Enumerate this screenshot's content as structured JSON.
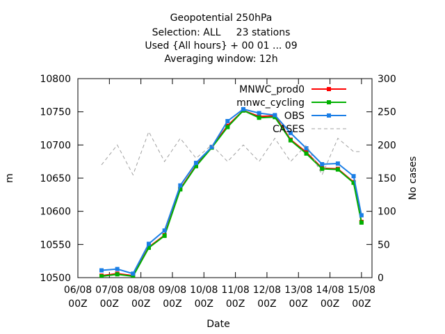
{
  "chart_data": {
    "type": "line",
    "title": [
      "Geopotential 250hPa",
      "Selection: ALL     23 stations",
      "Used {All hours} + 00 01 ... 09",
      "Averaging window: 12h"
    ],
    "xlabel": "Date",
    "ylabel": "m",
    "y2label": "No cases",
    "x": [
      18,
      30,
      42,
      54,
      66,
      78,
      90,
      102,
      114,
      126,
      138,
      150,
      162,
      174,
      186,
      198,
      210,
      216
    ],
    "xlim": [
      0,
      224
    ],
    "xticks": [
      {
        "value": 0,
        "label": "06/08\n00Z"
      },
      {
        "value": 24,
        "label": "07/08\n00Z"
      },
      {
        "value": 48,
        "label": "08/08\n00Z"
      },
      {
        "value": 72,
        "label": "09/08\n00Z"
      },
      {
        "value": 96,
        "label": "10/08\n00Z"
      },
      {
        "value": 120,
        "label": "11/08\n00Z"
      },
      {
        "value": 144,
        "label": "12/08\n00Z"
      },
      {
        "value": 168,
        "label": "13/08\n00Z"
      },
      {
        "value": 192,
        "label": "14/08\n00Z"
      },
      {
        "value": 216,
        "label": "15/08\n00Z"
      }
    ],
    "ylim": [
      10500,
      10800
    ],
    "yticks": [
      10500,
      10550,
      10600,
      10650,
      10700,
      10750,
      10800
    ],
    "y2lim": [
      0,
      300
    ],
    "y2ticks": [
      0,
      50,
      100,
      150,
      200,
      250,
      300
    ],
    "legend": "top-right",
    "grid": false,
    "series": [
      {
        "name": "MNWC_prod0",
        "color": "#ff0000",
        "values": [
          10503,
          10506,
          10503,
          10546,
          10564,
          10634,
          10669,
          10697,
          10729,
          10752,
          10743,
          10744,
          10708,
          10689,
          10665,
          10664,
          10644,
          10584
        ]
      },
      {
        "name": "mnwc_cycling",
        "color": "#00b000",
        "values": [
          10502,
          10505,
          10502,
          10545,
          10563,
          10633,
          10668,
          10696,
          10727,
          10752,
          10741,
          10742,
          10707,
          10687,
          10664,
          10663,
          10643,
          10583
        ]
      },
      {
        "name": "OBS",
        "color": "#1a7ee6",
        "values": [
          10511,
          10513,
          10506,
          10551,
          10571,
          10639,
          10673,
          10697,
          10736,
          10754,
          10748,
          10745,
          10718,
          10695,
          10671,
          10672,
          10653,
          10594
        ]
      },
      {
        "name": "CASES",
        "color": "#a0a0a0",
        "axis": "y2",
        "dashed": true,
        "values": [
          170,
          200,
          155,
          220,
          175,
          210,
          180,
          200,
          175,
          200,
          175,
          210,
          175,
          200,
          155,
          210,
          190,
          190
        ]
      }
    ]
  }
}
